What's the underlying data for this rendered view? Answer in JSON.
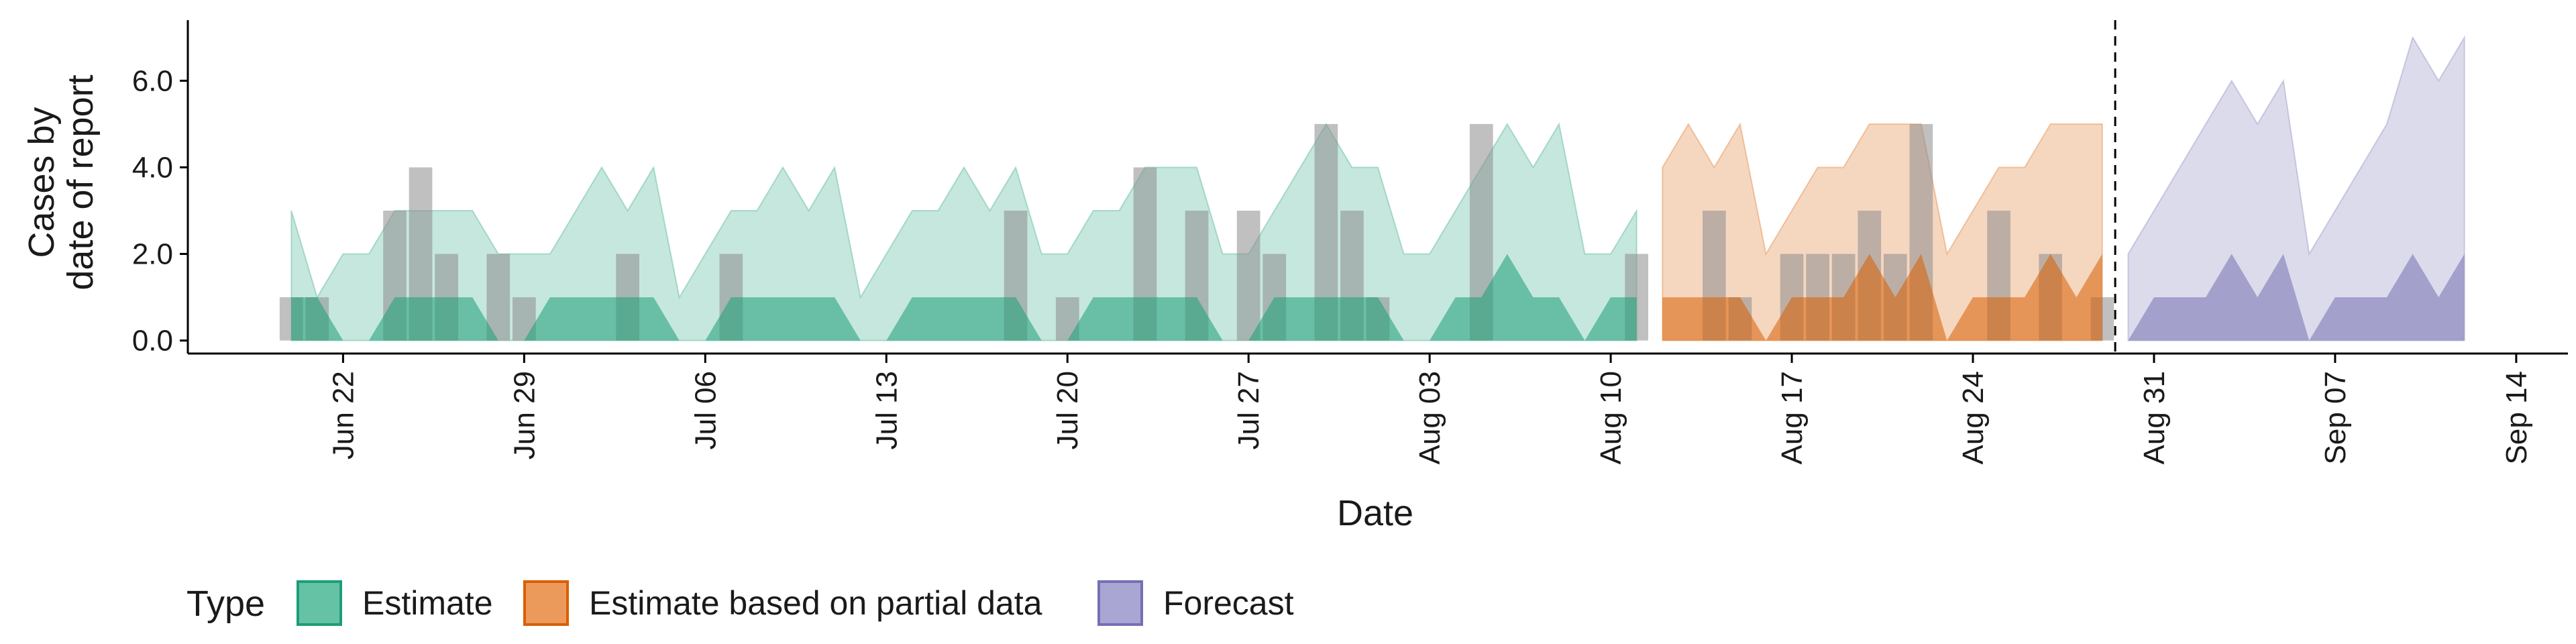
{
  "chart_data": {
    "type": "area",
    "xlabel": "Date",
    "ylabel": [
      "Cases by",
      "date of report"
    ],
    "ylim": [
      -0.3,
      7.4
    ],
    "yticks": [
      "0.0",
      "2.0",
      "4.0",
      "6.0"
    ],
    "ytick_values": [
      0,
      2,
      4,
      6
    ],
    "xticks": [
      "Jun 22",
      "Jun 29",
      "Jul 06",
      "Jul 13",
      "Jul 20",
      "Jul 27",
      "Aug 03",
      "Aug 10",
      "Aug 17",
      "Aug 24",
      "Aug 31",
      "Sep 07",
      "Sep 14"
    ],
    "xtick_dates": [
      "2020-06-22",
      "2020-06-29",
      "2020-07-06",
      "2020-07-13",
      "2020-07-20",
      "2020-07-27",
      "2020-08-03",
      "2020-08-10",
      "2020-08-17",
      "2020-08-24",
      "2020-08-31",
      "2020-09-07",
      "2020-09-14"
    ],
    "xlim": [
      "2020-06-16",
      "2020-09-16"
    ],
    "date_cutoff": "2020-08-29",
    "observed_cases": [
      [
        "2020-06-20",
        1
      ],
      [
        "2020-06-21",
        1
      ],
      [
        "2020-06-24",
        3
      ],
      [
        "2020-06-25",
        4
      ],
      [
        "2020-06-26",
        2
      ],
      [
        "2020-06-28",
        2
      ],
      [
        "2020-06-29",
        1
      ],
      [
        "2020-07-03",
        2
      ],
      [
        "2020-07-07",
        2
      ],
      [
        "2020-07-18",
        3
      ],
      [
        "2020-07-20",
        1
      ],
      [
        "2020-07-23",
        4
      ],
      [
        "2020-07-25",
        3
      ],
      [
        "2020-07-27",
        3
      ],
      [
        "2020-07-28",
        2
      ],
      [
        "2020-07-30",
        5
      ],
      [
        "2020-07-31",
        3
      ],
      [
        "2020-08-01",
        1
      ],
      [
        "2020-08-05",
        5
      ],
      [
        "2020-08-11",
        2
      ],
      [
        "2020-08-14",
        3
      ],
      [
        "2020-08-15",
        1
      ],
      [
        "2020-08-17",
        2
      ],
      [
        "2020-08-18",
        2
      ],
      [
        "2020-08-19",
        2
      ],
      [
        "2020-08-20",
        3
      ],
      [
        "2020-08-21",
        2
      ],
      [
        "2020-08-22",
        5
      ],
      [
        "2020-08-25",
        3
      ],
      [
        "2020-08-27",
        2
      ],
      [
        "2020-08-29",
        1
      ]
    ],
    "series": [
      {
        "name": "Estimate",
        "color": "#1b9e77",
        "dates": [
          "2020-06-20",
          "2020-06-21",
          "2020-06-22",
          "2020-06-23",
          "2020-06-24",
          "2020-06-25",
          "2020-06-26",
          "2020-06-27",
          "2020-06-28",
          "2020-06-29",
          "2020-06-30",
          "2020-07-01",
          "2020-07-02",
          "2020-07-03",
          "2020-07-04",
          "2020-07-05",
          "2020-07-06",
          "2020-07-07",
          "2020-07-08",
          "2020-07-09",
          "2020-07-10",
          "2020-07-11",
          "2020-07-12",
          "2020-07-13",
          "2020-07-14",
          "2020-07-15",
          "2020-07-16",
          "2020-07-17",
          "2020-07-18",
          "2020-07-19",
          "2020-07-20",
          "2020-07-21",
          "2020-07-22",
          "2020-07-23",
          "2020-07-24",
          "2020-07-25",
          "2020-07-26",
          "2020-07-27",
          "2020-07-28",
          "2020-07-29",
          "2020-07-30",
          "2020-07-31",
          "2020-08-01",
          "2020-08-02",
          "2020-08-03",
          "2020-08-04",
          "2020-08-05",
          "2020-08-06",
          "2020-08-07",
          "2020-08-08",
          "2020-08-09",
          "2020-08-10",
          "2020-08-11"
        ],
        "outer_upper": [
          3,
          1,
          2,
          2,
          3,
          3,
          3,
          3,
          2,
          2,
          2,
          3,
          4,
          3,
          4,
          1,
          2,
          3,
          3,
          4,
          3,
          4,
          1,
          2,
          3,
          3,
          4,
          3,
          4,
          2,
          2,
          3,
          3,
          4,
          4,
          4,
          2,
          2,
          3,
          4,
          5,
          4,
          4,
          2,
          2,
          3,
          4,
          5,
          4,
          5,
          2,
          2,
          3
        ],
        "inner_upper": [
          1,
          1,
          0,
          0,
          1,
          1,
          1,
          1,
          0,
          0,
          1,
          1,
          1,
          1,
          1,
          0,
          0,
          1,
          1,
          1,
          1,
          1,
          0,
          0,
          1,
          1,
          1,
          1,
          1,
          0,
          0,
          1,
          1,
          1,
          1,
          1,
          0,
          0,
          1,
          1,
          1,
          1,
          1,
          0,
          0,
          1,
          1,
          2,
          1,
          1,
          0,
          1,
          1
        ]
      },
      {
        "name": "Estimate based on partial data",
        "color": "#d95f02",
        "dates": [
          "2020-08-12",
          "2020-08-13",
          "2020-08-14",
          "2020-08-15",
          "2020-08-16",
          "2020-08-17",
          "2020-08-18",
          "2020-08-19",
          "2020-08-20",
          "2020-08-21",
          "2020-08-22",
          "2020-08-23",
          "2020-08-24",
          "2020-08-25",
          "2020-08-26",
          "2020-08-27",
          "2020-08-28",
          "2020-08-29"
        ],
        "outer_upper": [
          4,
          5,
          4,
          5,
          2,
          3,
          4,
          4,
          5,
          5,
          5,
          2,
          3,
          4,
          4,
          5,
          5,
          5
        ],
        "inner_upper": [
          1,
          1,
          1,
          1,
          0,
          1,
          1,
          1,
          2,
          1,
          2,
          0,
          1,
          1,
          1,
          2,
          1,
          2
        ]
      },
      {
        "name": "Forecast",
        "color": "#7570b3",
        "dates": [
          "2020-08-30",
          "2020-08-31",
          "2020-09-01",
          "2020-09-02",
          "2020-09-03",
          "2020-09-04",
          "2020-09-05",
          "2020-09-06",
          "2020-09-07",
          "2020-09-08",
          "2020-09-09",
          "2020-09-10",
          "2020-09-11",
          "2020-09-12"
        ],
        "outer_upper": [
          2,
          3,
          4,
          5,
          6,
          5,
          6,
          2,
          3,
          4,
          5,
          7,
          6,
          7
        ],
        "inner_upper": [
          0,
          1,
          1,
          1,
          2,
          1,
          2,
          0,
          1,
          1,
          1,
          2,
          1,
          2
        ]
      }
    ],
    "legend": {
      "title": "Type",
      "entries": [
        "Estimate",
        "Estimate based on partial data",
        "Forecast"
      ],
      "placement": "bottom-left"
    }
  }
}
